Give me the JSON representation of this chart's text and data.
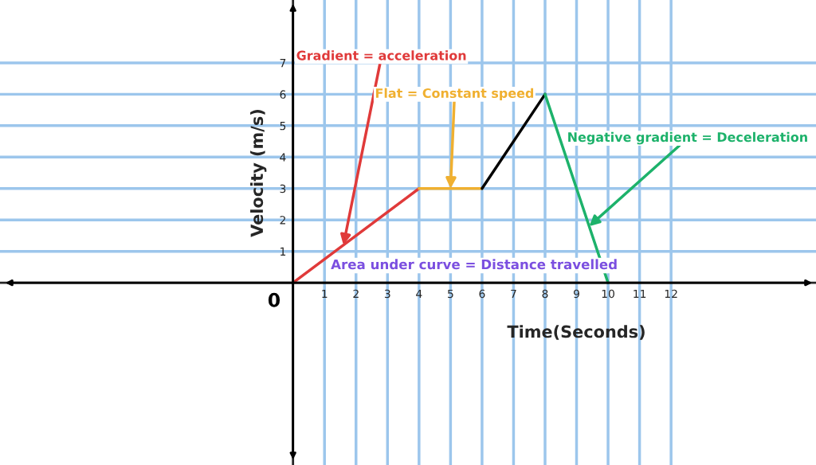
{
  "chart_data": {
    "type": "line",
    "xlabel": "Time(Seconds)",
    "ylabel": "Velocity (m/s)",
    "series": [
      {
        "color": "#e03a3a",
        "x": [
          0,
          4
        ],
        "values": [
          0,
          3
        ]
      },
      {
        "color": "#f0b030",
        "x": [
          4,
          6
        ],
        "values": [
          3,
          3
        ]
      },
      {
        "color": "#000000",
        "x": [
          6,
          8
        ],
        "values": [
          3,
          6
        ]
      },
      {
        "color": "#1db26b",
        "x": [
          8,
          10
        ],
        "values": [
          6,
          0
        ]
      }
    ],
    "xlim": [
      -9.3,
      16.6
    ],
    "ylim": [
      -5.8,
      9.0
    ],
    "xticks": [
      1,
      2,
      3,
      4,
      5,
      6,
      7,
      8,
      9,
      10,
      11,
      12
    ],
    "yticks": [
      1,
      2,
      3,
      4,
      5,
      6,
      7
    ],
    "grid": true,
    "legend": false,
    "marker": "none",
    "line_style": "solid",
    "annotations": [
      {
        "text": "Gradient = acceleration",
        "x": 1.6,
        "y": 1.2
      },
      {
        "text": "Flat = Constant speed",
        "x": 5,
        "y": 3
      },
      {
        "text": "Negative gradient = Deceleration",
        "x": 9.4,
        "y": 1.8
      },
      "Area under curve = Distance travelled",
      "0"
    ]
  }
}
